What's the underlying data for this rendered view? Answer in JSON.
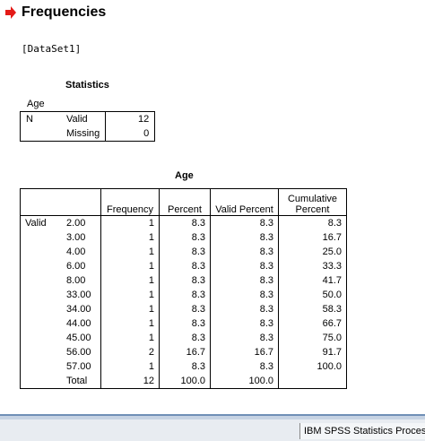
{
  "heading": {
    "title": "Frequencies",
    "icon": "red-arrow-icon",
    "icon_color": "#e41b17"
  },
  "dataset": "[DataSet1]",
  "statistics": {
    "title": "Statistics",
    "variable": "Age",
    "rows": [
      {
        "group": "N",
        "label": "Valid",
        "value": "12"
      },
      {
        "group": "",
        "label": "Missing",
        "value": "0"
      }
    ]
  },
  "age_table": {
    "title": "Age",
    "headers": [
      "Frequency",
      "Percent",
      "Valid Percent",
      "Cumulative Percent"
    ],
    "valid_label": "Valid",
    "rows": [
      {
        "value": "2.00",
        "frequency": "1",
        "percent": "8.3",
        "valid_percent": "8.3",
        "cumulative": "8.3"
      },
      {
        "value": "3.00",
        "frequency": "1",
        "percent": "8.3",
        "valid_percent": "8.3",
        "cumulative": "16.7"
      },
      {
        "value": "4.00",
        "frequency": "1",
        "percent": "8.3",
        "valid_percent": "8.3",
        "cumulative": "25.0"
      },
      {
        "value": "6.00",
        "frequency": "1",
        "percent": "8.3",
        "valid_percent": "8.3",
        "cumulative": "33.3"
      },
      {
        "value": "8.00",
        "frequency": "1",
        "percent": "8.3",
        "valid_percent": "8.3",
        "cumulative": "41.7"
      },
      {
        "value": "33.00",
        "frequency": "1",
        "percent": "8.3",
        "valid_percent": "8.3",
        "cumulative": "50.0"
      },
      {
        "value": "34.00",
        "frequency": "1",
        "percent": "8.3",
        "valid_percent": "8.3",
        "cumulative": "58.3"
      },
      {
        "value": "44.00",
        "frequency": "1",
        "percent": "8.3",
        "valid_percent": "8.3",
        "cumulative": "66.7"
      },
      {
        "value": "45.00",
        "frequency": "1",
        "percent": "8.3",
        "valid_percent": "8.3",
        "cumulative": "75.0"
      },
      {
        "value": "56.00",
        "frequency": "2",
        "percent": "16.7",
        "valid_percent": "16.7",
        "cumulative": "91.7"
      },
      {
        "value": "57.00",
        "frequency": "1",
        "percent": "8.3",
        "valid_percent": "8.3",
        "cumulative": "100.0"
      }
    ],
    "total": {
      "label": "Total",
      "frequency": "12",
      "percent": "100.0",
      "valid_percent": "100.0"
    }
  },
  "statusbar": {
    "processor_text": "IBM SPSS Statistics Processor is ready"
  }
}
